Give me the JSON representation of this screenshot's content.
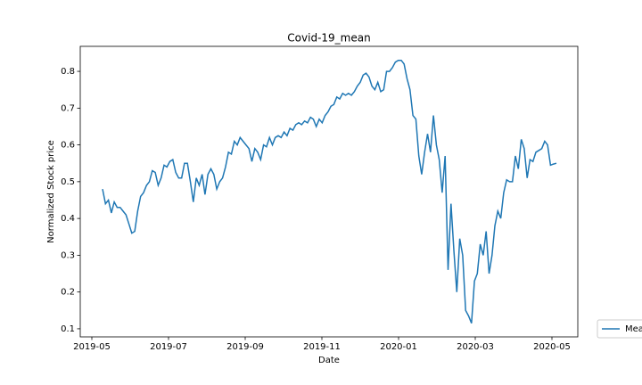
{
  "chart_data": {
    "type": "line",
    "title": "Covid-19_mean",
    "x_label": "Date",
    "y_label": "Normalized Stock price",
    "xticks": [
      "2019-05",
      "2019-07",
      "2019-09",
      "2019-11",
      "2020-01",
      "2020-03",
      "2020-05"
    ],
    "ylim": [
      0.078,
      0.868
    ],
    "yticks": [
      0.1,
      0.2,
      0.3,
      0.4,
      0.5,
      0.6,
      0.7,
      0.8
    ],
    "legend": "lower right",
    "series": [
      {
        "name": "Mean",
        "color": "#1f77b4",
        "values": [
          0.48,
          0.44,
          0.45,
          0.415,
          0.445,
          0.43,
          0.43,
          0.42,
          0.41,
          0.385,
          0.36,
          0.365,
          0.42,
          0.46,
          0.47,
          0.49,
          0.5,
          0.53,
          0.525,
          0.49,
          0.51,
          0.545,
          0.54,
          0.555,
          0.56,
          0.525,
          0.51,
          0.51,
          0.55,
          0.55,
          0.5,
          0.445,
          0.51,
          0.49,
          0.52,
          0.465,
          0.52,
          0.535,
          0.52,
          0.48,
          0.5,
          0.51,
          0.54,
          0.58,
          0.575,
          0.61,
          0.6,
          0.62,
          0.61,
          0.6,
          0.59,
          0.555,
          0.59,
          0.58,
          0.56,
          0.6,
          0.595,
          0.62,
          0.6,
          0.62,
          0.625,
          0.62,
          0.635,
          0.625,
          0.645,
          0.64,
          0.655,
          0.66,
          0.655,
          0.665,
          0.66,
          0.675,
          0.67,
          0.65,
          0.67,
          0.66,
          0.68,
          0.69,
          0.705,
          0.71,
          0.73,
          0.725,
          0.74,
          0.735,
          0.74,
          0.735,
          0.745,
          0.76,
          0.77,
          0.79,
          0.795,
          0.785,
          0.76,
          0.75,
          0.77,
          0.745,
          0.75,
          0.8,
          0.8,
          0.81,
          0.825,
          0.83,
          0.83,
          0.82,
          0.78,
          0.75,
          0.68,
          0.67,
          0.57,
          0.52,
          0.58,
          0.63,
          0.58,
          0.68,
          0.6,
          0.56,
          0.47,
          0.57,
          0.26,
          0.44,
          0.31,
          0.2,
          0.345,
          0.3,
          0.15,
          0.135,
          0.115,
          0.23,
          0.25,
          0.33,
          0.3,
          0.365,
          0.25,
          0.3,
          0.38,
          0.42,
          0.4,
          0.47,
          0.505,
          0.5,
          0.5,
          0.57,
          0.535,
          0.615,
          0.59,
          0.51,
          0.56,
          0.555,
          0.58,
          0.585,
          0.59,
          0.61,
          0.6,
          0.545,
          0.548,
          0.55
        ]
      }
    ]
  }
}
